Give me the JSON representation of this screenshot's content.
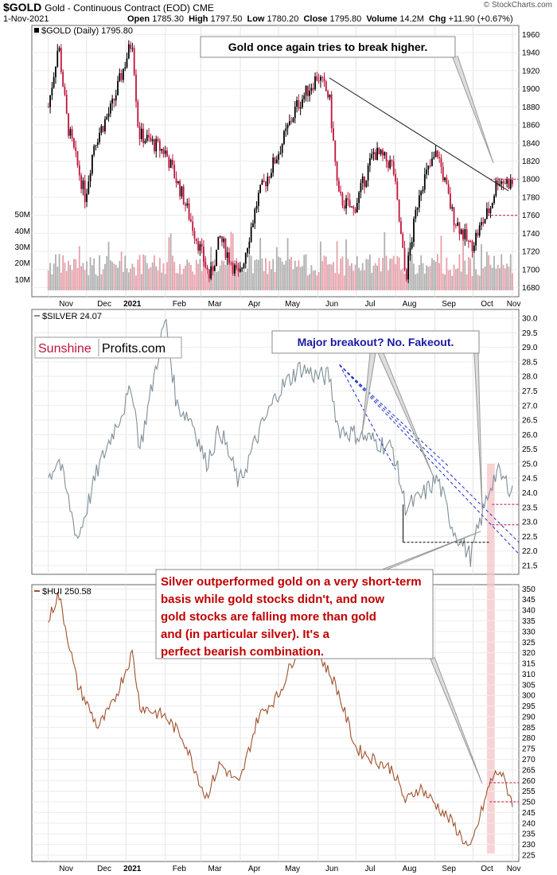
{
  "header": {
    "symbol": "$GOLD",
    "description": "Gold - Continuous Contract (EOD) CME",
    "date": "1-Nov-2021",
    "open_label": "Open",
    "open": "1785.30",
    "high_label": "High",
    "high": "1797.50",
    "low_label": "Low",
    "low": "1780.20",
    "close_label": "Close",
    "close": "1795.80",
    "volume_label": "Volume",
    "volume": "14.2M",
    "chg_label": "Chg",
    "chg": "+11.90 (+0.67%)",
    "credit": "© StockCharts.com"
  },
  "colors": {
    "gold_up": "#000000",
    "gold_down": "#c0143c",
    "volume_up": "#b0b0b0",
    "volume_down": "#e8a0aa",
    "silver": "#7f8f99",
    "hui": "#a0522d",
    "dashed_red": "#c0143c",
    "dashed_blue": "#1f2fd0",
    "highlight": "#f4c4c8",
    "callout_red": "#c00000",
    "callout_blue": "#1a1aa0"
  },
  "chart_data": [
    {
      "type": "candlestick",
      "legend": "$GOLD (Daily) 1795.80",
      "x_ticks": [
        "Nov",
        "Dec",
        "2021",
        "Feb",
        "Mar",
        "Apr",
        "May",
        "Jun",
        "Jul",
        "Aug",
        "Sep",
        "Oct",
        "Nov"
      ],
      "y_ticks": [
        1680,
        1700,
        1720,
        1740,
        1760,
        1780,
        1800,
        1820,
        1840,
        1860,
        1880,
        1900,
        1920,
        1940,
        1960
      ],
      "ylim": [
        1670,
        1970
      ],
      "volume_ticks": [
        "10M",
        "20M",
        "30M",
        "40M",
        "50M"
      ],
      "series": [
        {
          "name": "$GOLD",
          "x": [
            "2020-11-01",
            "2020-11-09",
            "2020-11-16",
            "2020-11-30",
            "2020-12-07",
            "2020-12-21",
            "2021-01-06",
            "2021-01-11",
            "2021-02-01",
            "2021-02-15",
            "2021-03-01",
            "2021-03-08",
            "2021-03-16",
            "2021-03-31",
            "2021-04-15",
            "2021-05-01",
            "2021-05-15",
            "2021-06-01",
            "2021-06-10",
            "2021-06-17",
            "2021-06-29",
            "2021-07-15",
            "2021-07-30",
            "2021-08-09",
            "2021-08-20",
            "2021-09-03",
            "2021-09-15",
            "2021-09-29",
            "2021-10-15",
            "2021-10-20",
            "2021-11-01"
          ],
          "y": [
            1880,
            1950,
            1860,
            1780,
            1840,
            1880,
            1955,
            1850,
            1830,
            1780,
            1720,
            1690,
            1735,
            1690,
            1780,
            1830,
            1880,
            1915,
            1890,
            1780,
            1765,
            1830,
            1815,
            1690,
            1790,
            1830,
            1760,
            1725,
            1770,
            1800,
            1795
          ]
        }
      ],
      "annotations": [
        "Gold once again tries to break higher."
      ]
    },
    {
      "type": "line",
      "legend": "$SILVER 24.07",
      "y_ticks": [
        21.5,
        22.0,
        22.5,
        23.0,
        23.5,
        24.0,
        24.5,
        25.0,
        25.5,
        26.0,
        26.5,
        27.0,
        27.5,
        28.0,
        28.5,
        29.0,
        29.5,
        30.0
      ],
      "ylim": [
        21.2,
        30.3
      ],
      "series": [
        {
          "name": "$SILVER",
          "x": [
            "2020-11-01",
            "2020-11-09",
            "2020-11-24",
            "2020-12-10",
            "2020-12-21",
            "2021-01-06",
            "2021-01-12",
            "2021-02-01",
            "2021-02-10",
            "2021-02-22",
            "2021-03-05",
            "2021-03-16",
            "2021-03-31",
            "2021-04-15",
            "2021-05-01",
            "2021-05-18",
            "2021-06-01",
            "2021-06-10",
            "2021-06-17",
            "2021-07-01",
            "2021-07-15",
            "2021-07-30",
            "2021-08-09",
            "2021-08-20",
            "2021-09-03",
            "2021-09-15",
            "2021-09-29",
            "2021-10-15",
            "2021-10-20",
            "2021-11-01"
          ],
          "y": [
            24.5,
            25.2,
            22.4,
            24.8,
            26.0,
            27.6,
            25.5,
            30.0,
            27.0,
            26.5,
            25.0,
            26.2,
            24.3,
            26.0,
            27.5,
            28.3,
            28.0,
            28.0,
            26.2,
            26.0,
            25.8,
            25.5,
            23.5,
            23.8,
            24.5,
            22.8,
            21.8,
            24.3,
            24.7,
            24.1
          ]
        }
      ],
      "annotations": [
        "Major breakout? No. Fakeout."
      ]
    },
    {
      "type": "line",
      "legend": "$HUI 250.58",
      "y_ticks": [
        225,
        230,
        235,
        240,
        245,
        250,
        255,
        260,
        265,
        270,
        275,
        280,
        285,
        290,
        295,
        300,
        305,
        310,
        315,
        320,
        325,
        330,
        335,
        340,
        345,
        350
      ],
      "ylim": [
        222,
        352
      ],
      "series": [
        {
          "name": "$HUI",
          "x": [
            "2020-11-01",
            "2020-11-09",
            "2020-11-24",
            "2020-12-10",
            "2020-12-21",
            "2021-01-06",
            "2021-01-12",
            "2021-02-01",
            "2021-02-15",
            "2021-03-05",
            "2021-03-16",
            "2021-03-31",
            "2021-04-15",
            "2021-05-01",
            "2021-05-18",
            "2021-06-01",
            "2021-06-15",
            "2021-07-01",
            "2021-07-15",
            "2021-07-30",
            "2021-08-09",
            "2021-08-20",
            "2021-09-03",
            "2021-09-15",
            "2021-09-29",
            "2021-10-01",
            "2021-10-15",
            "2021-10-22",
            "2021-11-01"
          ],
          "y": [
            335,
            348,
            305,
            285,
            295,
            320,
            295,
            290,
            280,
            252,
            268,
            258,
            290,
            300,
            325,
            320,
            305,
            275,
            270,
            265,
            250,
            257,
            248,
            240,
            227,
            232,
            260,
            265,
            250
          ]
        }
      ],
      "annotations": [
        "Silver outperformed gold on a very short-term basis while gold stocks didn't, and now gold stocks are falling more than gold and (in particular silver). It's a perfect bearish combination."
      ]
    }
  ],
  "watermark": {
    "sunshine": "Sunshine",
    "profits": "Profits.com"
  }
}
